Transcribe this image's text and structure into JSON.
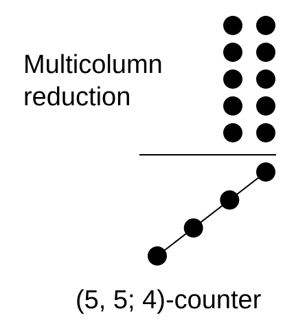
{
  "title_lines": [
    "Multicolumn",
    "reduction"
  ],
  "caption": "(5, 5; 4)-counter",
  "input_columns": [
    {
      "dots": 5
    },
    {
      "dots": 5
    }
  ],
  "output_bits": 4,
  "colors": {
    "ink": "#000000",
    "background": "#ffffff"
  }
}
